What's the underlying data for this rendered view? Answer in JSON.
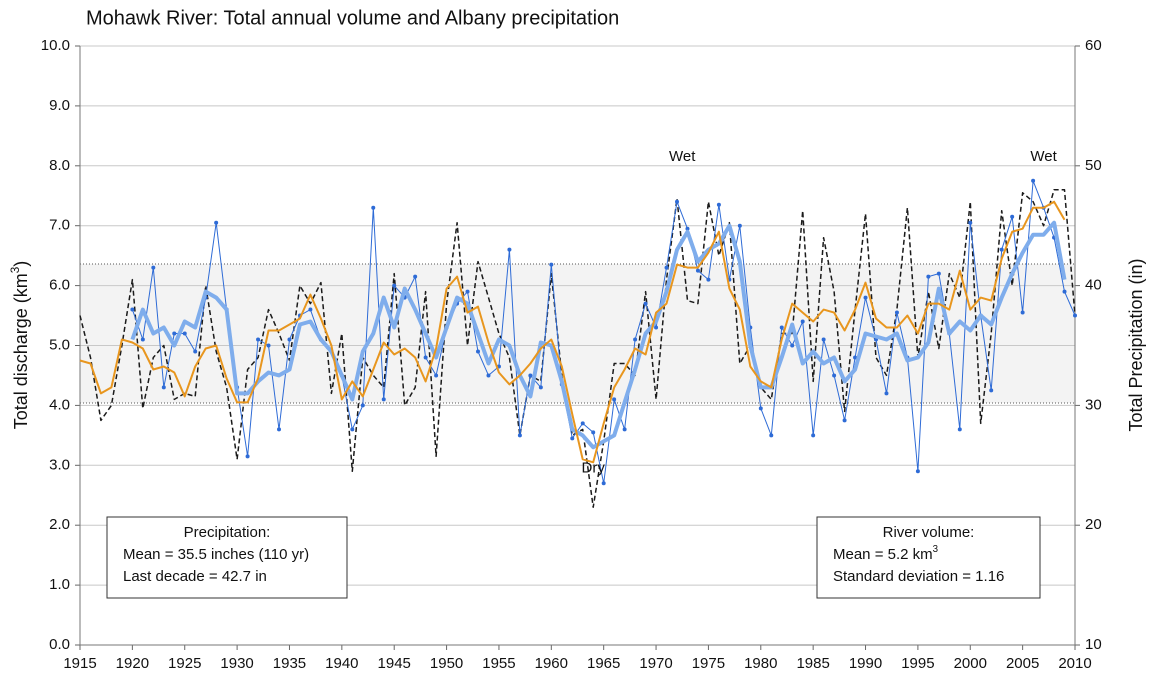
{
  "chart_data": {
    "type": "line",
    "title": "Mohawk River: Total annual volume and Albany precipitation",
    "y_label": [
      "Total discharge (km",
      "3",
      ")"
    ],
    "y2_label": "Total Precipitation (in)",
    "xlim": [
      1915,
      2010
    ],
    "xticks": [
      1915,
      1920,
      1925,
      1930,
      1935,
      1940,
      1945,
      1950,
      1955,
      1960,
      1965,
      1970,
      1975,
      1980,
      1985,
      1990,
      1995,
      2000,
      2005,
      2010
    ],
    "ylim": [
      0,
      10
    ],
    "yticks": [
      {
        "value": 0,
        "label": "0.0"
      },
      {
        "value": 1,
        "label": "1.0"
      },
      {
        "value": 2,
        "label": "2.0"
      },
      {
        "value": 3,
        "label": "3.0"
      },
      {
        "value": 4,
        "label": "4.0"
      },
      {
        "value": 5,
        "label": "5.0"
      },
      {
        "value": 6,
        "label": "6.0"
      },
      {
        "value": 7,
        "label": "7.0"
      },
      {
        "value": 8,
        "label": "8.0"
      },
      {
        "value": 9,
        "label": "9.0"
      },
      {
        "value": 10,
        "label": "10.0"
      }
    ],
    "y2lim": [
      10,
      60
    ],
    "y2ticks": [
      10,
      20,
      30,
      40,
      50,
      60
    ],
    "grid": true,
    "shaded_band": [
      4.04,
      6.36
    ],
    "x": [
      1915,
      1916,
      1917,
      1918,
      1919,
      1920,
      1921,
      1922,
      1923,
      1924,
      1925,
      1926,
      1927,
      1928,
      1929,
      1930,
      1931,
      1932,
      1933,
      1934,
      1935,
      1936,
      1937,
      1938,
      1939,
      1940,
      1941,
      1942,
      1943,
      1944,
      1945,
      1946,
      1947,
      1948,
      1949,
      1950,
      1951,
      1952,
      1953,
      1954,
      1955,
      1956,
      1957,
      1958,
      1959,
      1960,
      1961,
      1962,
      1963,
      1964,
      1965,
      1966,
      1967,
      1968,
      1969,
      1970,
      1971,
      1972,
      1973,
      1974,
      1975,
      1976,
      1977,
      1978,
      1979,
      1980,
      1981,
      1982,
      1983,
      1984,
      1985,
      1986,
      1987,
      1988,
      1989,
      1990,
      1991,
      1992,
      1993,
      1994,
      1995,
      1996,
      1997,
      1998,
      1999,
      2000,
      2001,
      2002,
      2003,
      2004,
      2005,
      2006,
      2007,
      2008,
      2009,
      2010
    ],
    "series": [
      {
        "color": "#9a9a9a",
        "dash": true,
        "width": 1.5,
        "axis": "y2",
        "stroke": "#1a1a1a",
        "values": [
          37.5,
          34,
          28.75,
          30,
          35,
          40.5,
          29.75,
          34,
          35,
          30.5,
          31,
          30.75,
          40,
          34.5,
          31.5,
          25.5,
          33,
          34,
          38,
          36,
          33.75,
          40,
          38.5,
          40.25,
          31,
          36,
          24.5,
          34,
          32.5,
          31.5,
          41,
          30,
          31.5,
          39.5,
          25.75,
          38.5,
          45.25,
          35,
          42,
          39,
          36,
          34,
          27.5,
          32.5,
          32,
          41,
          32.5,
          27.5,
          28,
          21.5,
          27,
          33.5,
          33.5,
          32.5,
          39.5,
          30.5,
          40.5,
          47.25,
          38.75,
          38.5,
          47,
          42.5,
          45.25,
          33.5,
          35,
          31.5,
          30.5,
          36,
          36,
          46.25,
          32,
          44,
          39.5,
          29.5,
          38,
          46,
          34,
          32.5,
          38,
          46.5,
          34,
          39.5,
          34.75,
          41,
          39,
          47,
          28.5,
          36,
          46.25,
          40,
          47.75,
          47,
          45,
          48,
          48,
          37.5
        ]
      },
      {
        "color": "#2e6bd6",
        "width": 1,
        "markers": true,
        "values": [
          null,
          null,
          null,
          null,
          null,
          5.6,
          5.1,
          6.3,
          4.3,
          5.2,
          5.2,
          4.9,
          5.8,
          7.05,
          5.6,
          4.3,
          3.15,
          5.1,
          5.0,
          3.6,
          5.1,
          5.5,
          5.6,
          5.1,
          4.9,
          4.5,
          3.6,
          4.0,
          7.3,
          4.1,
          6.0,
          5.8,
          6.15,
          4.8,
          4.5,
          5.3,
          5.7,
          5.9,
          4.9,
          4.5,
          4.65,
          6.6,
          3.5,
          4.5,
          4.3,
          6.35,
          4.35,
          3.45,
          3.7,
          3.55,
          2.7,
          4.1,
          3.6,
          5.1,
          5.7,
          5.3,
          6.3,
          7.4,
          6.95,
          6.25,
          6.1,
          7.35,
          6.1,
          7.0,
          5.3,
          3.95,
          3.5,
          5.3,
          5.0,
          5.4,
          3.5,
          5.1,
          4.5,
          3.75,
          4.8,
          5.8,
          5.1,
          4.2,
          5.55,
          4.8,
          2.9,
          6.15,
          6.2,
          5.2,
          3.6,
          7.05,
          5.5,
          4.25,
          6.6,
          7.15,
          5.55,
          7.75,
          7.3,
          6.8,
          5.9,
          5.5
        ]
      },
      {
        "color": "#7fadec",
        "width": 4,
        "values": [
          null,
          null,
          null,
          null,
          null,
          5.1,
          5.6,
          5.2,
          5.3,
          5.0,
          5.4,
          5.3,
          5.9,
          5.8,
          5.6,
          4.2,
          4.2,
          4.4,
          4.55,
          4.5,
          4.6,
          5.35,
          5.4,
          5.1,
          4.9,
          4.5,
          4.1,
          4.9,
          5.2,
          5.8,
          5.3,
          5.95,
          5.6,
          5.2,
          4.8,
          5.3,
          5.8,
          5.7,
          5.2,
          4.7,
          5.1,
          5.0,
          4.5,
          4.15,
          5.05,
          5.0,
          4.4,
          3.6,
          3.5,
          3.3,
          3.4,
          3.5,
          4.05,
          4.6,
          5.2,
          5.4,
          5.9,
          6.6,
          6.9,
          6.4,
          6.6,
          6.7,
          7.0,
          6.4,
          5.0,
          4.3,
          4.3,
          4.8,
          5.35,
          4.7,
          4.9,
          4.7,
          4.8,
          4.4,
          4.6,
          5.2,
          5.15,
          5.1,
          5.2,
          4.75,
          4.8,
          5.05,
          5.95,
          5.2,
          5.4,
          5.25,
          5.5,
          5.35,
          5.8,
          6.2,
          6.55,
          6.85,
          6.85,
          7.05,
          6.1,
          null
        ]
      },
      {
        "color": "#e8961e",
        "width": 2,
        "axis": "y2",
        "values": [
          33.75,
          33.5,
          31,
          31.5,
          35.5,
          35.25,
          34.75,
          33,
          33.25,
          32.75,
          30.75,
          33.25,
          34.75,
          35,
          32.25,
          30.25,
          30.25,
          32.25,
          36.25,
          36.25,
          36.75,
          37.25,
          39.25,
          37.25,
          35,
          30.5,
          32,
          30.75,
          33,
          35.25,
          34.25,
          34.75,
          34,
          32,
          34.75,
          39.75,
          40.75,
          37.75,
          38.25,
          35.25,
          32.75,
          31.75,
          32.5,
          33.5,
          34.75,
          35.5,
          33.25,
          29.25,
          25.5,
          25.25,
          28.5,
          31.5,
          33,
          34.75,
          34.25,
          37.75,
          38.5,
          41.75,
          41.5,
          41.5,
          42.75,
          44.5,
          39.75,
          38,
          33.25,
          32,
          31.5,
          35.5,
          38.5,
          37.75,
          37,
          38,
          37.75,
          36.25,
          38,
          40.25,
          37.25,
          36.5,
          36.5,
          37.5,
          36,
          38.5,
          38.5,
          38,
          41.25,
          38,
          39,
          38.75,
          42.25,
          44.5,
          44.75,
          46.5,
          46.5,
          47,
          45.5,
          null
        ]
      }
    ],
    "annotations": [
      {
        "text": "Wet",
        "x": 1972.5,
        "y": 8.15
      },
      {
        "text": "Wet",
        "x": 2007,
        "y": 8.15
      },
      {
        "text": "Dry",
        "x": 1964,
        "y": 2.95
      }
    ],
    "boxes": [
      {
        "lines": [
          "Precipitation:",
          "Mean = 35.5 inches (110 yr)",
          "Last decade = 42.7 in"
        ]
      },
      {
        "lines": [
          "River volume:",
          [
            "Mean = 5.2 km",
            "3"
          ],
          "Standard deviation = 1.16"
        ]
      }
    ]
  }
}
